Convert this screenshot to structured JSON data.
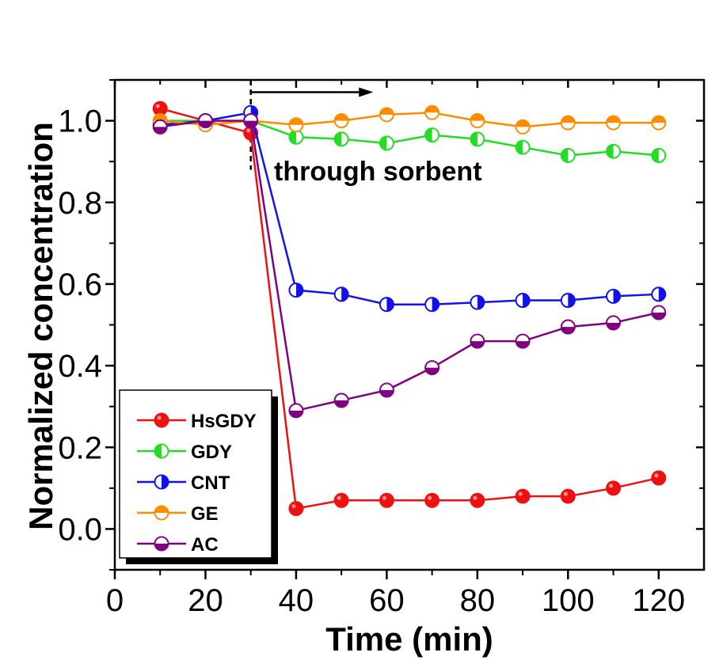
{
  "chart_data": {
    "type": "line",
    "title": "",
    "xlabel": "Time (min)",
    "ylabel": "Normalized  concentration",
    "xlim": [
      0,
      130
    ],
    "ylim": [
      -0.1,
      1.1
    ],
    "xticks": [
      0,
      20,
      40,
      60,
      80,
      100,
      120
    ],
    "yticks": [
      0.0,
      0.2,
      0.4,
      0.6,
      0.8,
      1.0
    ],
    "ytick_labels": [
      "0.0",
      "0.2",
      "0.4",
      "0.6",
      "0.8",
      "1.0"
    ],
    "grid": false,
    "legend_position": "bottom-left",
    "annotation": {
      "text": "through sorbent",
      "arrow_from_x": 30,
      "arrow_to_x": 57,
      "marker_x": 30
    },
    "series": [
      {
        "name": "HsGDY",
        "color": "#ee1111",
        "marker": "filled",
        "x": [
          10,
          20,
          30,
          40,
          50,
          60,
          70,
          80,
          90,
          100,
          110,
          120
        ],
        "y": [
          1.03,
          1.0,
          0.97,
          0.05,
          0.07,
          0.07,
          0.07,
          0.07,
          0.08,
          0.08,
          0.1,
          0.125
        ]
      },
      {
        "name": "GDY",
        "color": "#22dd22",
        "marker": "left-half",
        "x": [
          10,
          20,
          30,
          40,
          50,
          60,
          70,
          80,
          90,
          100,
          110,
          120
        ],
        "y": [
          1.0,
          1.0,
          1.0,
          0.96,
          0.955,
          0.945,
          0.965,
          0.955,
          0.935,
          0.915,
          0.925,
          0.915
        ]
      },
      {
        "name": "CNT",
        "color": "#1111ee",
        "marker": "right-half",
        "x": [
          10,
          20,
          30,
          40,
          50,
          60,
          70,
          80,
          90,
          100,
          110,
          120
        ],
        "y": [
          0.99,
          1.0,
          1.02,
          0.585,
          0.575,
          0.55,
          0.55,
          0.555,
          0.56,
          0.56,
          0.57,
          0.575
        ]
      },
      {
        "name": "GE",
        "color": "#ff8c00",
        "marker": "top-half",
        "x": [
          10,
          20,
          30,
          40,
          50,
          60,
          70,
          80,
          90,
          100,
          110,
          120
        ],
        "y": [
          1.0,
          0.99,
          1.0,
          0.99,
          1.0,
          1.015,
          1.02,
          1.0,
          0.985,
          0.995,
          0.995,
          0.995
        ]
      },
      {
        "name": "AC",
        "color": "#800080",
        "marker": "bottom-half",
        "x": [
          10,
          20,
          30,
          40,
          50,
          60,
          70,
          80,
          90,
          100,
          110,
          120
        ],
        "y": [
          0.985,
          1.0,
          1.0,
          0.29,
          0.315,
          0.34,
          0.395,
          0.46,
          0.46,
          0.495,
          0.505,
          0.53
        ]
      }
    ]
  }
}
